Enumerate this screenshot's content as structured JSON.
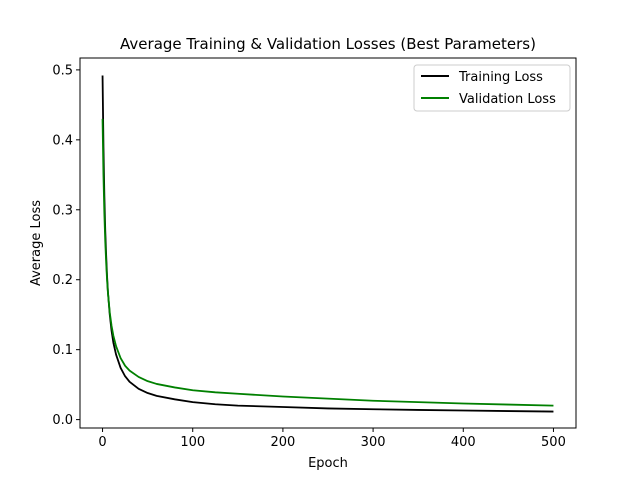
{
  "chart_data": {
    "type": "line",
    "title": "Average Training & Validation Losses (Best Parameters)",
    "xlabel": "Epoch",
    "ylabel": "Average Loss",
    "xlim": [
      -25,
      525
    ],
    "ylim": [
      -0.012,
      0.517
    ],
    "xticks": [
      0,
      100,
      200,
      300,
      400,
      500
    ],
    "xtick_labels": [
      "0",
      "100",
      "200",
      "300",
      "400",
      "500"
    ],
    "yticks": [
      0.0,
      0.1,
      0.2,
      0.3,
      0.4,
      0.5
    ],
    "ytick_labels": [
      "0.0",
      "0.1",
      "0.2",
      "0.3",
      "0.4",
      "0.5"
    ],
    "grid": false,
    "legend_position": "top-right",
    "series": [
      {
        "name": "Training Loss",
        "color": "#000000",
        "x": [
          0,
          1,
          2,
          3,
          4,
          5,
          6,
          8,
          10,
          12,
          15,
          20,
          25,
          30,
          40,
          50,
          60,
          80,
          100,
          125,
          150,
          200,
          250,
          300,
          350,
          400,
          450,
          500
        ],
        "y": [
          0.492,
          0.39,
          0.32,
          0.27,
          0.235,
          0.205,
          0.182,
          0.15,
          0.127,
          0.11,
          0.093,
          0.074,
          0.062,
          0.054,
          0.044,
          0.038,
          0.034,
          0.029,
          0.025,
          0.022,
          0.02,
          0.018,
          0.016,
          0.0148,
          0.0138,
          0.013,
          0.0122,
          0.0115
        ]
      },
      {
        "name": "Validation Loss",
        "color": "#008000",
        "x": [
          0,
          1,
          2,
          3,
          4,
          5,
          6,
          8,
          10,
          12,
          15,
          20,
          25,
          30,
          40,
          50,
          60,
          80,
          100,
          125,
          150,
          200,
          250,
          300,
          350,
          400,
          450,
          500
        ],
        "y": [
          0.43,
          0.35,
          0.295,
          0.255,
          0.225,
          0.2,
          0.181,
          0.153,
          0.134,
          0.12,
          0.105,
          0.088,
          0.077,
          0.07,
          0.061,
          0.055,
          0.051,
          0.046,
          0.042,
          0.039,
          0.037,
          0.033,
          0.03,
          0.027,
          0.025,
          0.023,
          0.0215,
          0.02
        ]
      }
    ]
  }
}
